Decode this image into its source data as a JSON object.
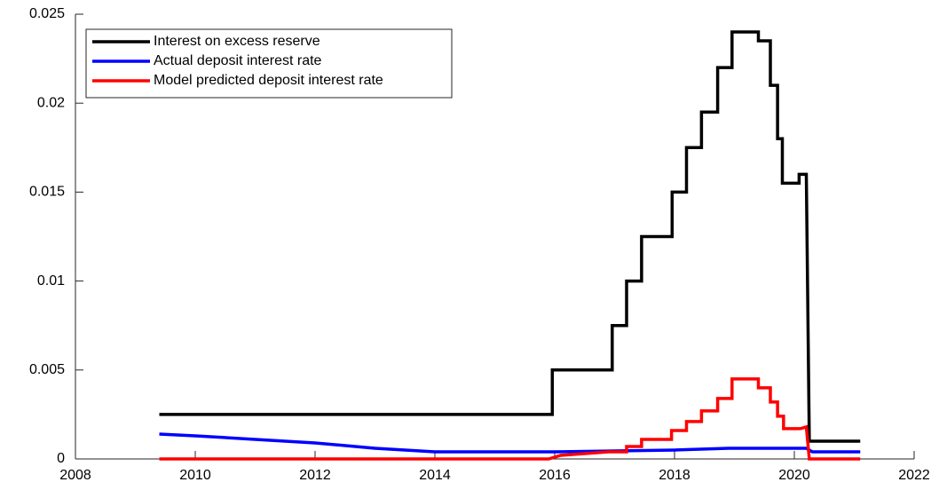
{
  "chart_data": {
    "type": "line",
    "xlim": [
      2008,
      2022
    ],
    "xticks": [
      2008,
      2010,
      2012,
      2014,
      2016,
      2018,
      2020,
      2022
    ],
    "ylim": [
      0,
      0.025
    ],
    "yticks": [
      0,
      0.005,
      0.01,
      0.015,
      0.02,
      0.025
    ],
    "legend": "northwest",
    "series": [
      {
        "name": "Interest on excess reserve",
        "color": "#000000",
        "x": [
          2009.4,
          2015.96,
          2015.96,
          2016.96,
          2016.96,
          2017.2,
          2017.2,
          2017.45,
          2017.45,
          2017.96,
          2017.96,
          2018.2,
          2018.2,
          2018.45,
          2018.45,
          2018.72,
          2018.72,
          2018.96,
          2018.96,
          2019.4,
          2019.4,
          2019.6,
          2019.6,
          2019.72,
          2019.72,
          2019.8,
          2019.8,
          2020.08,
          2020.08,
          2020.2,
          2020.25,
          2021.1
        ],
        "values": [
          0.0025,
          0.0025,
          0.005,
          0.005,
          0.0075,
          0.0075,
          0.01,
          0.01,
          0.0125,
          0.0125,
          0.015,
          0.015,
          0.0175,
          0.0175,
          0.0195,
          0.0195,
          0.022,
          0.022,
          0.024,
          0.024,
          0.0235,
          0.0235,
          0.021,
          0.021,
          0.018,
          0.018,
          0.0155,
          0.0155,
          0.016,
          0.016,
          0.001,
          0.001
        ]
      },
      {
        "name": "Actual deposit interest rate",
        "color": "#0000ff",
        "x": [
          2009.4,
          2010,
          2011,
          2012,
          2013,
          2014,
          2016,
          2018,
          2018.9,
          2020.2,
          2020.3,
          2021.1
        ],
        "values": [
          0.0014,
          0.0013,
          0.0011,
          0.0009,
          0.0006,
          0.0004,
          0.0004,
          0.0005,
          0.0006,
          0.0006,
          0.0004,
          0.0004
        ]
      },
      {
        "name": "Model predicted deposit interest rate",
        "color": "#ff0000",
        "x": [
          2009.4,
          2015.9,
          2016.1,
          2016.9,
          2017.2,
          2017.2,
          2017.45,
          2017.45,
          2017.95,
          2017.95,
          2018.2,
          2018.2,
          2018.45,
          2018.45,
          2018.72,
          2018.72,
          2018.96,
          2018.96,
          2019.4,
          2019.4,
          2019.6,
          2019.6,
          2019.72,
          2019.72,
          2019.82,
          2019.82,
          2020.1,
          2020.2,
          2020.25,
          2021.1
        ],
        "values": [
          0,
          0,
          0.0002,
          0.0004,
          0.0004,
          0.0007,
          0.0007,
          0.0011,
          0.0011,
          0.0016,
          0.0016,
          0.0021,
          0.0021,
          0.0027,
          0.0027,
          0.0034,
          0.0034,
          0.0045,
          0.0045,
          0.004,
          0.004,
          0.0032,
          0.0032,
          0.0024,
          0.0024,
          0.0017,
          0.0017,
          0.0018,
          0,
          0
        ]
      }
    ]
  }
}
